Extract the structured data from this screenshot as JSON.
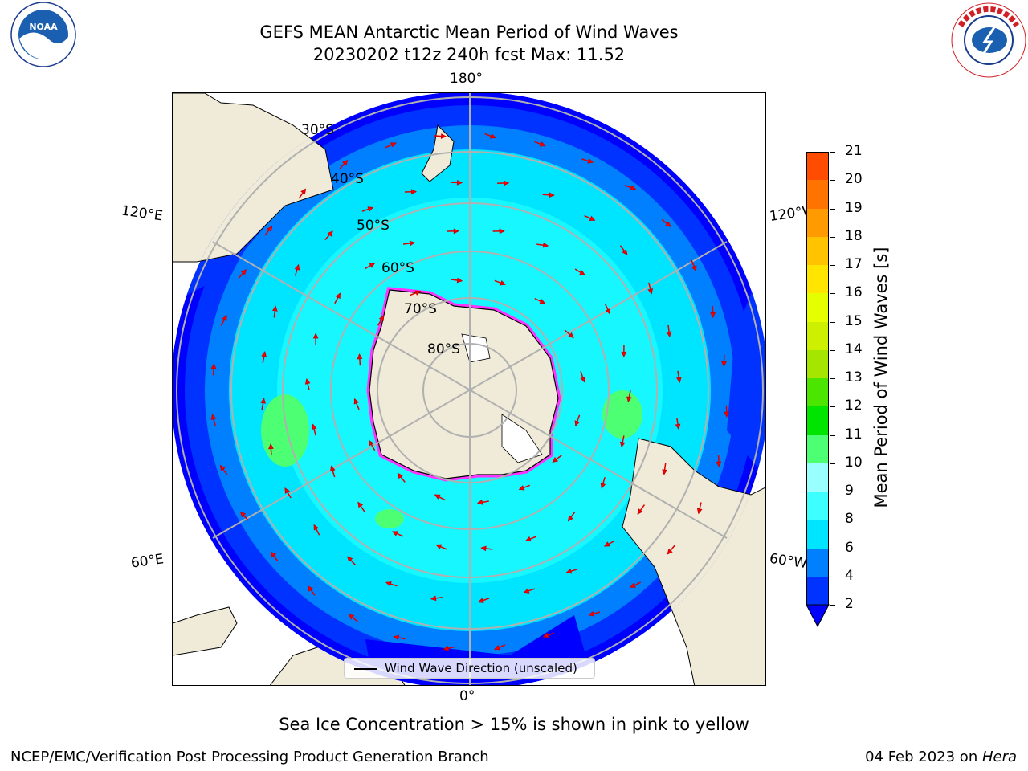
{
  "title": {
    "line1": "GEFS MEAN Antarctic Mean Period of Wind Waves",
    "line2": "20230202 t12z 240h fcst   Max: 11.52"
  },
  "logos": {
    "left": "noaa-logo",
    "right": "national-weather-service-logo",
    "left_text": "NOAA",
    "right_text": "NATIONAL WEATHER SERVICE"
  },
  "map": {
    "projection": "south-polar-stereographic",
    "lon_labels": {
      "top": "180°",
      "bottom": "0°",
      "left_upper": "120°E",
      "left_lower": "60°E",
      "right_upper": "120°W",
      "right_lower": "60°W"
    },
    "lat_labels": [
      "30°S",
      "40°S",
      "50°S",
      "60°S",
      "70°S",
      "80°S"
    ],
    "legend": "Wind Wave Direction (unscaled)",
    "ocean_color": "#17f7ff",
    "land_color": "#efebd8",
    "ice_edge_color": "#ff33ff"
  },
  "colorbar": {
    "label": "Mean Period of Wind Waves [s]",
    "ticks": [
      "2",
      "4",
      "6",
      "8",
      "9",
      "10",
      "11",
      "12",
      "13",
      "14",
      "15",
      "16",
      "17",
      "18",
      "19",
      "20",
      "21"
    ],
    "colors": [
      "#0033ff",
      "#007fff",
      "#00e5ff",
      "#3dffff",
      "#99ffff",
      "#4cff73",
      "#00e500",
      "#4ce500",
      "#a5e500",
      "#ccf000",
      "#e5ff00",
      "#ffe500",
      "#ffc300",
      "#ff9a00",
      "#ff7300",
      "#ff4c00",
      "#ff0d00"
    ],
    "extend_color": "#0000ff"
  },
  "sea_ice_note": "Sea Ice Concentration > 15% is shown in pink to yellow",
  "footer": {
    "left": "NCEP/EMC/Verification Post Processing Product Generation Branch",
    "right_date": "04 Feb 2023 on ",
    "right_host": "Hera"
  }
}
